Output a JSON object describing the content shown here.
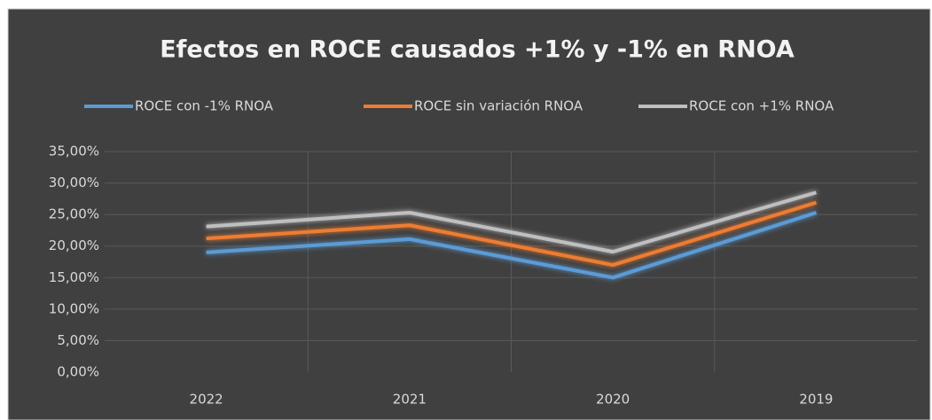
{
  "chart_data": {
    "type": "line",
    "title": "Efectos en ROCE causados +1% y -1% en RNOA",
    "categories": [
      "2022",
      "2021",
      "2020",
      "2019"
    ],
    "series": [
      {
        "name": "ROCE con -1% RNOA",
        "color": "#5b9bd5",
        "values": [
          19.0,
          21.1,
          15.0,
          25.3
        ]
      },
      {
        "name": "ROCE sin variación RNOA",
        "color": "#ed7d31",
        "values": [
          21.2,
          23.3,
          17.0,
          26.9
        ]
      },
      {
        "name": "ROCE con +1% RNOA",
        "color": "#bfbfbf",
        "values": [
          23.1,
          25.3,
          19.1,
          28.5
        ]
      }
    ],
    "ylim": [
      0,
      35
    ],
    "yticks": [
      {
        "value": 0,
        "label": "0,00%"
      },
      {
        "value": 5,
        "label": "5,00%"
      },
      {
        "value": 10,
        "label": "10,00%"
      },
      {
        "value": 15,
        "label": "15,00%"
      },
      {
        "value": 20,
        "label": "20,00%"
      },
      {
        "value": 25,
        "label": "25,00%"
      },
      {
        "value": 30,
        "label": "30,00%"
      },
      {
        "value": 35,
        "label": "35,00%"
      }
    ],
    "grid": true,
    "legend": "top"
  }
}
